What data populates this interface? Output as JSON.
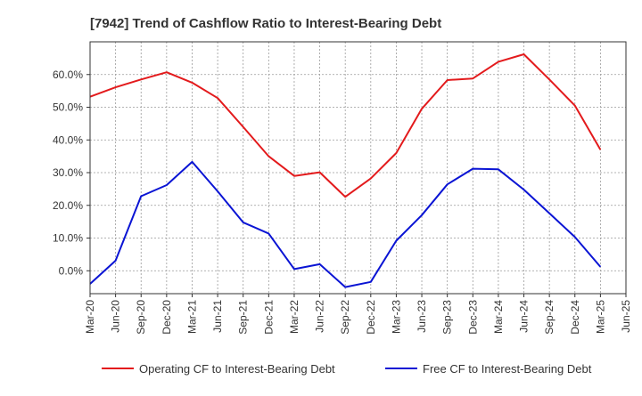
{
  "chart_data": {
    "type": "line",
    "title": "[7942]  Trend of Cashflow Ratio to Interest-Bearing Debt",
    "xlabel": "",
    "ylabel": "",
    "categories": [
      "Mar-20",
      "Jun-20",
      "Sep-20",
      "Dec-20",
      "Mar-21",
      "Jun-21",
      "Sep-21",
      "Dec-21",
      "Mar-22",
      "Jun-22",
      "Sep-22",
      "Dec-22",
      "Mar-23",
      "Jun-23",
      "Sep-23",
      "Dec-23",
      "Mar-24",
      "Jun-24",
      "Sep-24",
      "Dec-24",
      "Mar-25",
      "Jun-25"
    ],
    "x_tick_labels": [
      "Mar-20",
      "Jun-20",
      "Sep-20",
      "Dec-20",
      "Mar-21",
      "Jun-21",
      "Sep-21",
      "Dec-21",
      "Mar-22",
      "Jun-22",
      "Sep-22",
      "Dec-22",
      "Mar-23",
      "Jun-23",
      "Sep-23",
      "Dec-23",
      "Mar-24",
      "Jun-24",
      "Sep-24",
      "Dec-24",
      "Mar-25",
      "Jun-25"
    ],
    "y_ticks": [
      0,
      10,
      20,
      30,
      40,
      50,
      60
    ],
    "y_tick_labels": [
      "0.0%",
      "10.0%",
      "20.0%",
      "30.0%",
      "40.0%",
      "50.0%",
      "60.0%"
    ],
    "ylim": [
      -7,
      70
    ],
    "grid": true,
    "legend_position": "bottom",
    "series": [
      {
        "name": "Operating CF to Interest-Bearing Debt",
        "color": "#e31a1c",
        "values": [
          53.2,
          56.1,
          58.5,
          60.7,
          57.5,
          52.8,
          44.0,
          35.0,
          29.0,
          30.1,
          22.6,
          28.2,
          36.0,
          49.5,
          58.3,
          58.8,
          63.9,
          66.2,
          58.5,
          50.5,
          37.0,
          null
        ]
      },
      {
        "name": "Free CF to Interest-Bearing Debt",
        "color": "#0a14d4",
        "values": [
          -4.0,
          3.1,
          22.8,
          26.2,
          33.3,
          24.3,
          14.8,
          11.4,
          0.5,
          2.0,
          -5.0,
          -3.4,
          9.2,
          17.0,
          26.4,
          31.2,
          31.0,
          24.8,
          17.6,
          10.3,
          1.2,
          null
        ]
      }
    ]
  }
}
